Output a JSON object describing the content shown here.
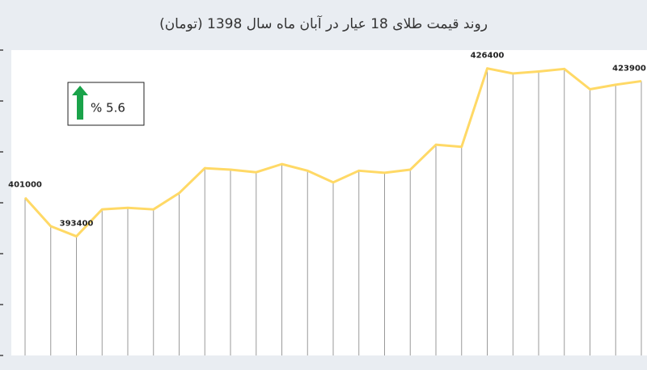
{
  "chart_data": {
    "type": "line",
    "title": "روند قیمت طلای 18 عیار در آبان ماه سال 1398 (تومان)",
    "categories": [
      null,
      null,
      null,
      null,
      null,
      null,
      null,
      null,
      null,
      null,
      null,
      null,
      null,
      null,
      null,
      null,
      null,
      null,
      null,
      null,
      null,
      null,
      null,
      null,
      null
    ],
    "series": [
      {
        "name": null,
        "color": "#ffd966",
        "values": [
          401000,
          395400,
          393400,
          398700,
          399000,
          398700,
          401900,
          406800,
          406500,
          406000,
          407600,
          406300,
          404000,
          406300,
          405900,
          406500,
          411400,
          411000,
          426400,
          425400,
          425800,
          426300,
          422300,
          423200,
          423900
        ],
        "value_labels": [
          "401000",
          null,
          "393400",
          null,
          null,
          null,
          null,
          null,
          null,
          null,
          null,
          null,
          null,
          null,
          null,
          null,
          null,
          null,
          "426400",
          null,
          null,
          null,
          null,
          null,
          "423900"
        ]
      }
    ],
    "ylim": [
      370000,
      430000
    ],
    "yticks": [
      370000,
      380000,
      390000,
      400000,
      410000,
      420000,
      430000
    ],
    "annotations": [
      "% 5.6"
    ]
  }
}
